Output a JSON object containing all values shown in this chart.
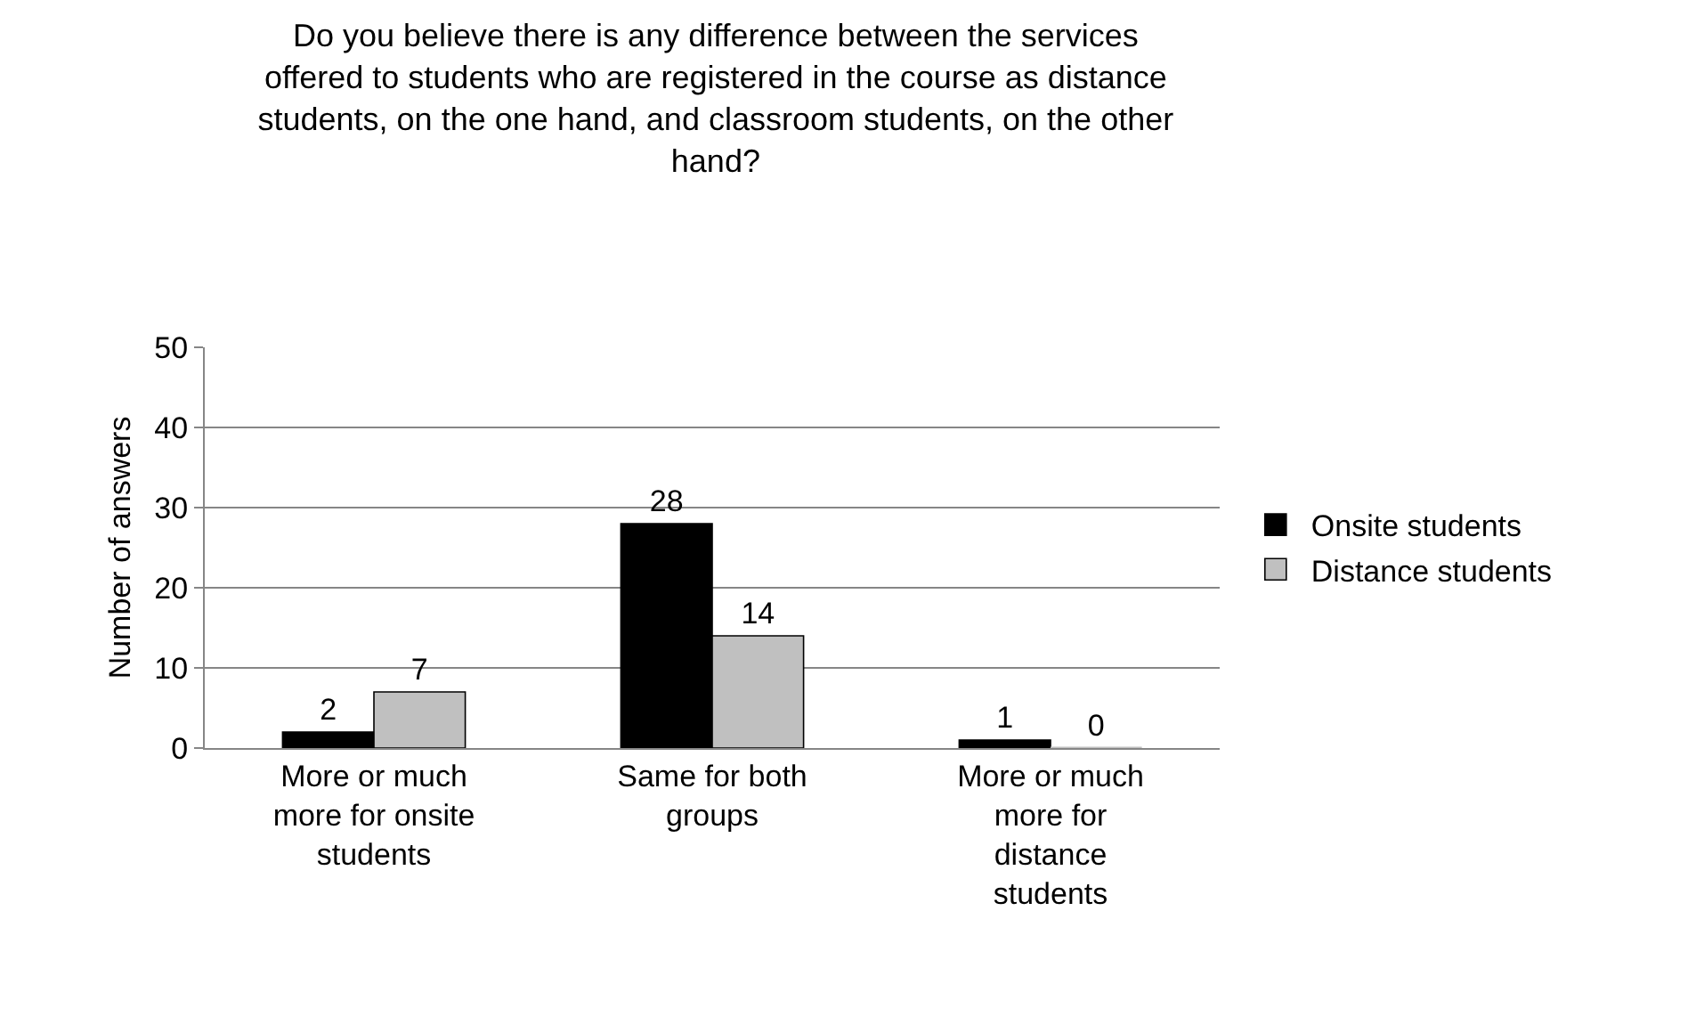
{
  "chart_data": {
    "type": "bar",
    "title": "Do you believe there is any difference between the services offered to students who are registered in the course as distance students, on the one hand, and classroom students, on the other hand?",
    "ylabel": "Number of answers",
    "categories": [
      "More or much more for onsite students",
      "Same for both groups",
      "More or much more for distance students"
    ],
    "series": [
      {
        "name": "Onsite students",
        "color": "#000000",
        "values": [
          2,
          28,
          1
        ]
      },
      {
        "name": "Distance students",
        "color": "#c0c0c0",
        "values": [
          7,
          14,
          0
        ]
      }
    ],
    "ylim": [
      0,
      50
    ],
    "yticks": [
      0,
      10,
      20,
      30,
      40,
      50
    ],
    "grid": "y",
    "legend": "right",
    "data_labels": true
  }
}
